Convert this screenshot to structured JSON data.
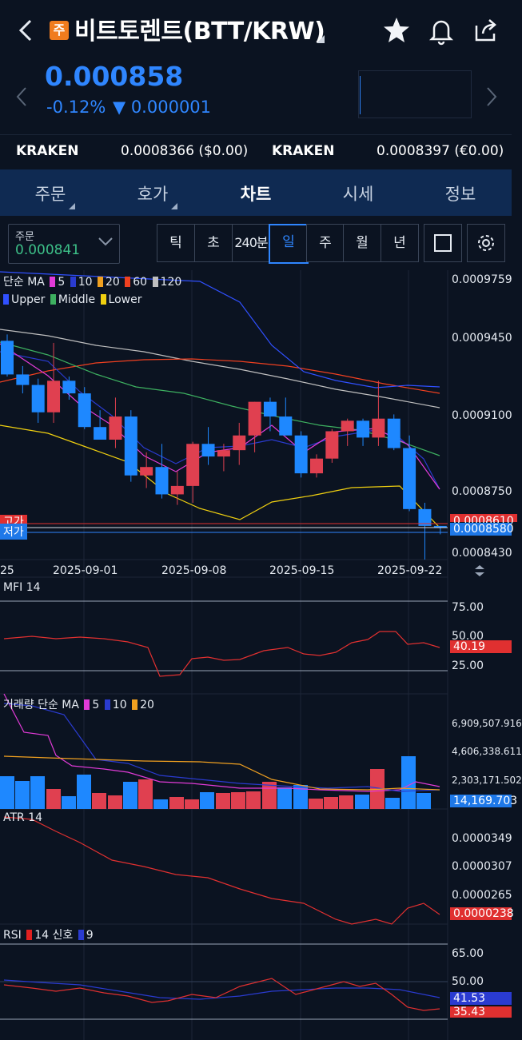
{
  "header": {
    "badge": "주",
    "title": "비트토렌트(BTT/KRW)"
  },
  "price": {
    "current": "0.000858",
    "change_pct": "-0.12%",
    "change_abs": "▼ 0.000001"
  },
  "exchanges": [
    {
      "name": "KRAKEN",
      "value": "0.0008366 ($0.00)"
    },
    {
      "name": "KRAKEN",
      "value": "0.0008397 (€0.00)"
    }
  ],
  "tabs": [
    "주문",
    "호가",
    "차트",
    "시세",
    "정보"
  ],
  "order": {
    "label": "주문",
    "value": "0.000841"
  },
  "periods": [
    "틱",
    "초",
    "240분",
    "일",
    "주",
    "월",
    "년"
  ],
  "active_period": "일",
  "legend": {
    "ma_title": "단순 MA",
    "ma": [
      {
        "n": "5",
        "c": "#e23bd8"
      },
      {
        "n": "10",
        "c": "#2a3bd0"
      },
      {
        "n": "20",
        "c": "#f0a020"
      },
      {
        "n": "60",
        "c": "#f04020"
      },
      {
        "n": "120",
        "c": "#bfbfbf"
      }
    ],
    "bb": [
      {
        "n": "Upper",
        "c": "#3050ff"
      },
      {
        "n": "Middle",
        "c": "#3db060"
      },
      {
        "n": "Lower",
        "c": "#f0d010"
      }
    ],
    "mfi": "MFI 14",
    "vol_title": "거래량 단순 MA",
    "vol_ma": [
      {
        "n": "5",
        "c": "#e23bd8"
      },
      {
        "n": "10",
        "c": "#2a3bd0"
      },
      {
        "n": "20",
        "c": "#f0a020"
      }
    ],
    "atr": "ATR 14",
    "rsi_title": "RSI",
    "rsi": [
      {
        "n": "14",
        "c": "#e02020"
      },
      {
        "n": "신호",
        "c": ""
      },
      {
        "n": "9",
        "c": "#2a3bd0"
      }
    ]
  },
  "price_axis": [
    "0.0009759",
    "0.0009450",
    "0.0009100",
    "0.0008750",
    "0.0008430"
  ],
  "price_tags": {
    "current": "0.0008580",
    "high_partial": "0.0008610"
  },
  "left_tags": {
    "high": "고가",
    "low": "저가"
  },
  "dates": [
    "25",
    "2025-09-01",
    "2025-09-08",
    "2025-09-15",
    "2025-09-22"
  ],
  "mfi_axis": [
    "75.00",
    "50.00",
    "25.00"
  ],
  "mfi_value": "40.19",
  "vol_axis": [
    "6,909,507.916",
    "4,606,338.611",
    "2,303,171.502"
  ],
  "vol_value": "14,169.703",
  "atr_axis": [
    "0.0000349",
    "0.0000307",
    "0.0000265"
  ],
  "atr_value": "0.0000238",
  "rsi_axis": [
    "65.00",
    "50.00"
  ],
  "rsi_value": "41.53",
  "rsi_value2": "35.43",
  "colors": {
    "up": "#e04050",
    "down": "#1e88ff",
    "bg": "#0b1321",
    "tabs_bg": "#0f2a52",
    "accent": "#2f86ff"
  },
  "chart_data": [
    {
      "type": "candlestick",
      "title": "",
      "series": [
        {
          "name": "단순 MA",
          "values": []
        }
      ],
      "ohlc": [
        [
          0.000947,
          0.00095,
          0.00093,
          0.000931
        ],
        [
          0.000931,
          0.000935,
          0.000922,
          0.000926
        ],
        [
          0.000926,
          0.000929,
          0.000908,
          0.000913
        ],
        [
          0.000913,
          0.000946,
          0.000908,
          0.000928
        ],
        [
          0.000928,
          0.00093,
          0.000919,
          0.000922
        ],
        [
          0.000922,
          0.000925,
          0.000905,
          0.000906
        ],
        [
          0.000906,
          0.000914,
          0.0009,
          0.0009
        ],
        [
          0.0009,
          0.00092,
          0.000896,
          0.000911
        ],
        [
          0.000911,
          0.000914,
          0.00088,
          0.000883
        ],
        [
          0.000883,
          0.000894,
          0.000877,
          0.000887
        ],
        [
          0.000887,
          0.000898,
          0.000872,
          0.000874
        ],
        [
          0.000874,
          0.000885,
          0.000869,
          0.000878
        ],
        [
          0.000878,
          0.000899,
          0.00087,
          0.000898
        ],
        [
          0.000898,
          0.000906,
          0.000888,
          0.000892
        ],
        [
          0.000892,
          0.000898,
          0.000885,
          0.000895
        ],
        [
          0.000895,
          0.000908,
          0.000888,
          0.000902
        ],
        [
          0.000902,
          0.000918,
          0.000894,
          0.000918
        ],
        [
          0.000918,
          0.00092,
          0.000904,
          0.000911
        ],
        [
          0.000911,
          0.00092,
          0.000902,
          0.000902
        ],
        [
          0.000902,
          0.000904,
          0.000882,
          0.000884
        ],
        [
          0.000884,
          0.000893,
          0.000882,
          0.000891
        ],
        [
          0.000891,
          0.000905,
          0.000889,
          0.000904
        ],
        [
          0.000904,
          0.00091,
          0.000897,
          0.000909
        ],
        [
          0.000909,
          0.00091,
          0.000897,
          0.000901
        ],
        [
          0.000901,
          0.000928,
          0.000897,
          0.00091
        ],
        [
          0.00091,
          0.000912,
          0.000895,
          0.000896
        ],
        [
          0.000896,
          0.000902,
          0.000866,
          0.000867
        ],
        [
          0.000867,
          0.00087,
          0.000843,
          0.000859
        ],
        [
          0.000859,
          0.000859,
          0.000855,
          0.000858
        ]
      ],
      "ylim": [
        0.000843,
        0.000976
      ]
    }
  ]
}
